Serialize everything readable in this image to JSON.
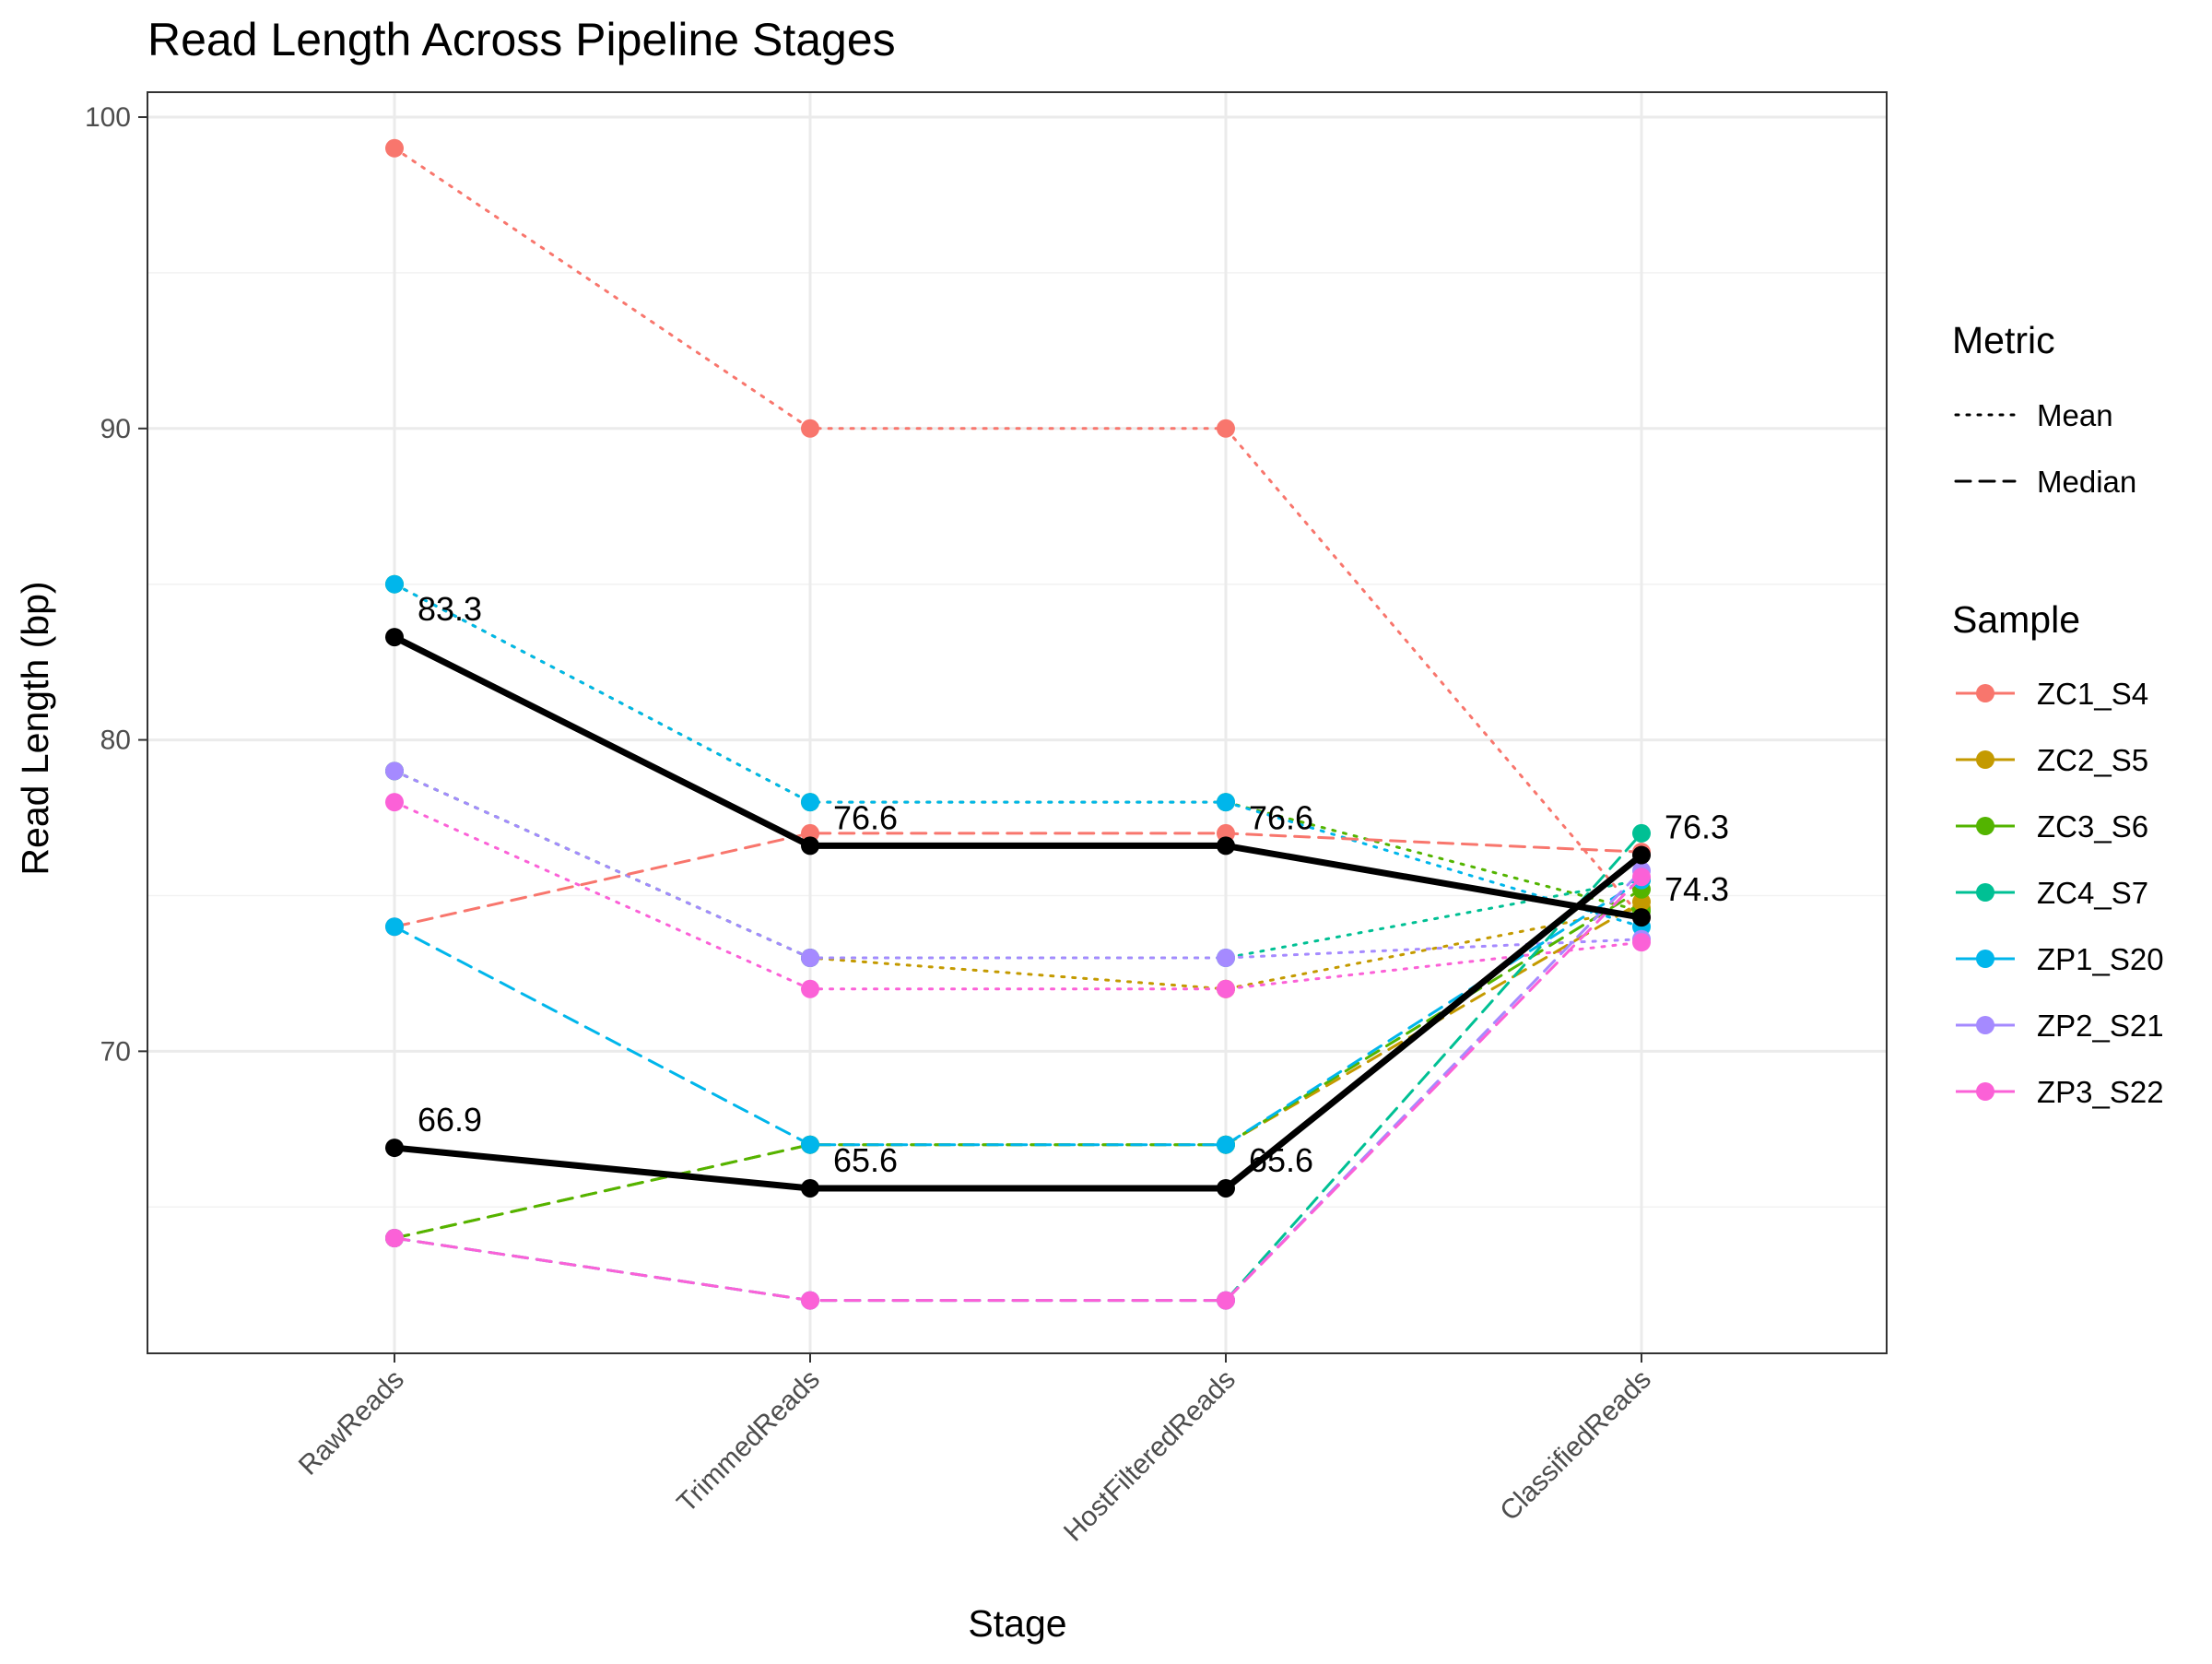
{
  "chart_data": {
    "type": "line",
    "title": "Read Length Across Pipeline Stages",
    "xlabel": "Stage",
    "ylabel": "Read Length (bp)",
    "categories": [
      "RawReads",
      "TrimmedReads",
      "HostFilteredReads",
      "ClassifiedReads"
    ],
    "ylim": [
      60.3,
      100.8
    ],
    "yticks": [
      70,
      80,
      90,
      100
    ],
    "grid": true,
    "legend_position": "right",
    "legend_metric_title": "Metric",
    "legend_sample_title": "Sample",
    "metrics": [
      {
        "name": "Mean",
        "dash": "dotted"
      },
      {
        "name": "Median",
        "dash": "dashed"
      }
    ],
    "samples": [
      {
        "name": "ZC1_S4",
        "color": "#F8766D"
      },
      {
        "name": "ZC2_S5",
        "color": "#C49A00"
      },
      {
        "name": "ZC3_S6",
        "color": "#53B400"
      },
      {
        "name": "ZC4_S7",
        "color": "#00C094"
      },
      {
        "name": "ZP1_S20",
        "color": "#00B6EB"
      },
      {
        "name": "ZP2_S21",
        "color": "#A58AFF"
      },
      {
        "name": "ZP3_S22",
        "color": "#FB61D7"
      }
    ],
    "series": [
      {
        "sample": "ZC1_S4",
        "metric": "Mean",
        "values": [
          99,
          90,
          90,
          74.3
        ]
      },
      {
        "sample": "ZC2_S5",
        "metric": "Mean",
        "values": [
          79,
          73,
          72,
          74.6
        ]
      },
      {
        "sample": "ZC3_S6",
        "metric": "Mean",
        "values": [
          85,
          78,
          78,
          74.5
        ]
      },
      {
        "sample": "ZC4_S7",
        "metric": "Mean",
        "values": [
          79,
          73,
          73,
          75.5
        ]
      },
      {
        "sample": "ZP1_S20",
        "metric": "Mean",
        "values": [
          85,
          78,
          78,
          74.0
        ]
      },
      {
        "sample": "ZP2_S21",
        "metric": "Mean",
        "values": [
          79,
          73,
          73,
          73.6
        ]
      },
      {
        "sample": "ZP3_S22",
        "metric": "Mean",
        "values": [
          78,
          72,
          72,
          73.5
        ]
      },
      {
        "sample": "ZC1_S4",
        "metric": "Median",
        "values": [
          74,
          77,
          77,
          76.4
        ]
      },
      {
        "sample": "ZC2_S5",
        "metric": "Median",
        "values": [
          64,
          67,
          67,
          74.8
        ]
      },
      {
        "sample": "ZC3_S6",
        "metric": "Median",
        "values": [
          64,
          67,
          67,
          75.2
        ]
      },
      {
        "sample": "ZC4_S7",
        "metric": "Median",
        "values": [
          64,
          62,
          62,
          77.0
        ]
      },
      {
        "sample": "ZP1_S20",
        "metric": "Median",
        "values": [
          74,
          67,
          67,
          75.5
        ]
      },
      {
        "sample": "ZP2_S21",
        "metric": "Median",
        "values": [
          64,
          62,
          62,
          75.8
        ]
      },
      {
        "sample": "ZP3_S22",
        "metric": "Median",
        "values": [
          64,
          62,
          62,
          75.6
        ]
      }
    ],
    "summary_series": [
      {
        "metric": "Mean",
        "color": "#000000",
        "values": [
          83.3,
          76.6,
          76.6,
          74.3
        ],
        "labels": [
          "83.3",
          "76.6",
          "76.6",
          "74.3"
        ]
      },
      {
        "metric": "Median",
        "color": "#000000",
        "values": [
          66.9,
          65.6,
          65.6,
          76.3
        ],
        "labels": [
          "66.9",
          "65.6",
          "65.6",
          "76.3"
        ]
      }
    ]
  }
}
